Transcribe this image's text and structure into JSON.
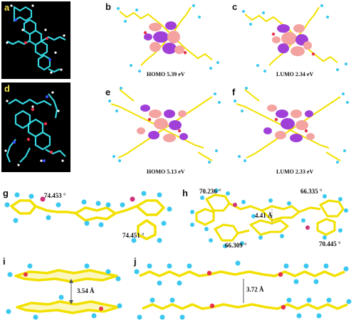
{
  "figure": {
    "colors": {
      "carbon": "#f2e000",
      "hydrogen": "#3bc8f0",
      "oxygen": "#e8324a",
      "orbital_pink": "#f4a3a0",
      "orbital_purple": "#a040d8",
      "dark_bg": "#000000",
      "stick_cyan": "#34d6e0"
    },
    "panels": {
      "a": {
        "letter": "a"
      },
      "b": {
        "letter": "b",
        "caption": "HOMO 5.39 eV"
      },
      "c": {
        "letter": "c",
        "caption": "LUMO 2.34 eV"
      },
      "d": {
        "letter": "d"
      },
      "e": {
        "letter": "e",
        "caption": "HOMO 5.13 eV"
      },
      "f": {
        "letter": "f",
        "caption": "LUMO 2.33 eV"
      },
      "g": {
        "letter": "g",
        "angle_left": "74.453 °",
        "angle_right": "74.451 °"
      },
      "h": {
        "letter": "h",
        "angle_tl": "70.236 °",
        "angle_tr": "66.335 °",
        "distance": "4.41 Å",
        "angle_bl": "66.309 °",
        "angle_br": "70.445 °"
      },
      "i": {
        "letter": "i",
        "distance": "3.54 Å"
      },
      "j": {
        "letter": "j",
        "distance": "3.72 Å"
      }
    }
  }
}
